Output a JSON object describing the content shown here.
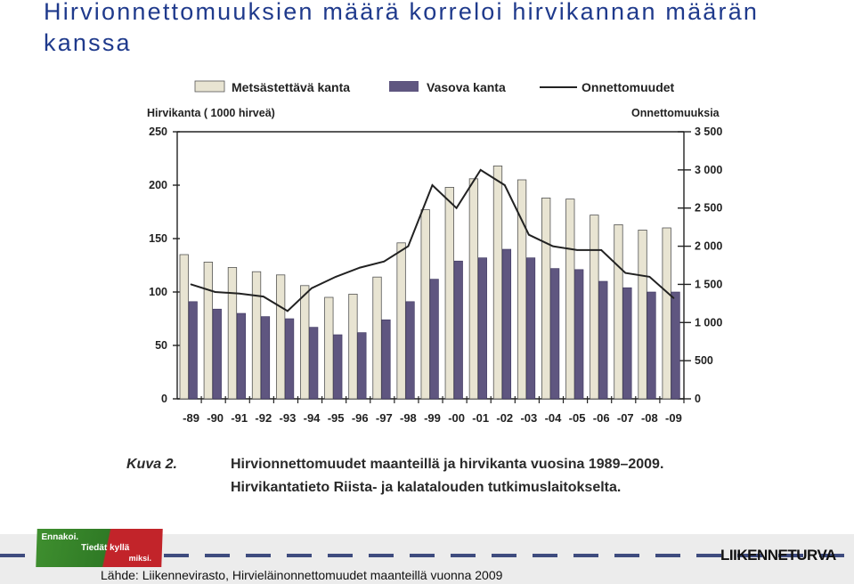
{
  "slide": {
    "title": "Hirvionnettomuuksien määrä korreloi  hirvikannan määrän kanssa",
    "caption_label": "Kuva 2.",
    "caption_line1": "Hirvionnettomuudet maanteillä ja hirvikanta vuosina 1989–2009.",
    "caption_line2": "Hirvikantatieto Riista- ja kalatalouden tutkimuslaitokselta.",
    "source": "Lähde: Liikennevirasto, Hirvieläinonnettomuudet maanteillä vuonna 2009",
    "brand": "LIIKENNETURVA",
    "logo_line1": "Ennakoi.",
    "logo_line2": "Tiedät kyllä",
    "logo_line3": "miksi."
  },
  "colors": {
    "title": "#1f3a8c",
    "bar_huntable": "#e8e4d2",
    "bar_calf": "#5f5680",
    "line_accidents": "#222222",
    "footer_dash": "#1f2f6b"
  },
  "chart_data": {
    "type": "bar",
    "categories": [
      "-89",
      "-90",
      "-91",
      "-92",
      "-93",
      "-94",
      "-95",
      "-96",
      "-97",
      "-98",
      "-99",
      "-00",
      "-01",
      "-02",
      "-03",
      "-04",
      "-05",
      "-06",
      "-07",
      "-08",
      "-09"
    ],
    "series": [
      {
        "name": "Metsästettävä kanta",
        "type": "bar",
        "axis": "left",
        "values": [
          135,
          128,
          123,
          119,
          116,
          106,
          95,
          98,
          114,
          146,
          177,
          198,
          206,
          218,
          205,
          188,
          187,
          172,
          163,
          158,
          160
        ]
      },
      {
        "name": "Vasova kanta",
        "type": "bar",
        "axis": "left",
        "values": [
          91,
          84,
          80,
          77,
          75,
          67,
          60,
          62,
          74,
          91,
          112,
          129,
          132,
          140,
          132,
          122,
          121,
          110,
          104,
          100,
          100
        ]
      },
      {
        "name": "Onnettomuudet",
        "type": "line",
        "axis": "right",
        "values": [
          1500,
          1400,
          1380,
          1340,
          1150,
          1450,
          1600,
          1720,
          1800,
          2000,
          2800,
          2500,
          3000,
          2800,
          2150,
          2000,
          1950,
          1950,
          1650,
          1600,
          1320
        ]
      }
    ],
    "left_axis": {
      "title": "Hirvikanta ( 1000 hirveä)",
      "ylim": [
        0,
        250
      ],
      "ticks": [
        "0",
        "50",
        "100",
        "150",
        "200",
        "250"
      ]
    },
    "right_axis": {
      "title": "Onnettomuuksia",
      "ylim": [
        0,
        3500
      ],
      "ticks": [
        "0",
        "500",
        "1 000",
        "1 500",
        "2 000",
        "2 500",
        "3 000",
        "3 500"
      ]
    },
    "legend": [
      "Metsästettävä kanta",
      "Vasova kanta",
      "Onnettomuudet"
    ],
    "legend_position": "top"
  }
}
